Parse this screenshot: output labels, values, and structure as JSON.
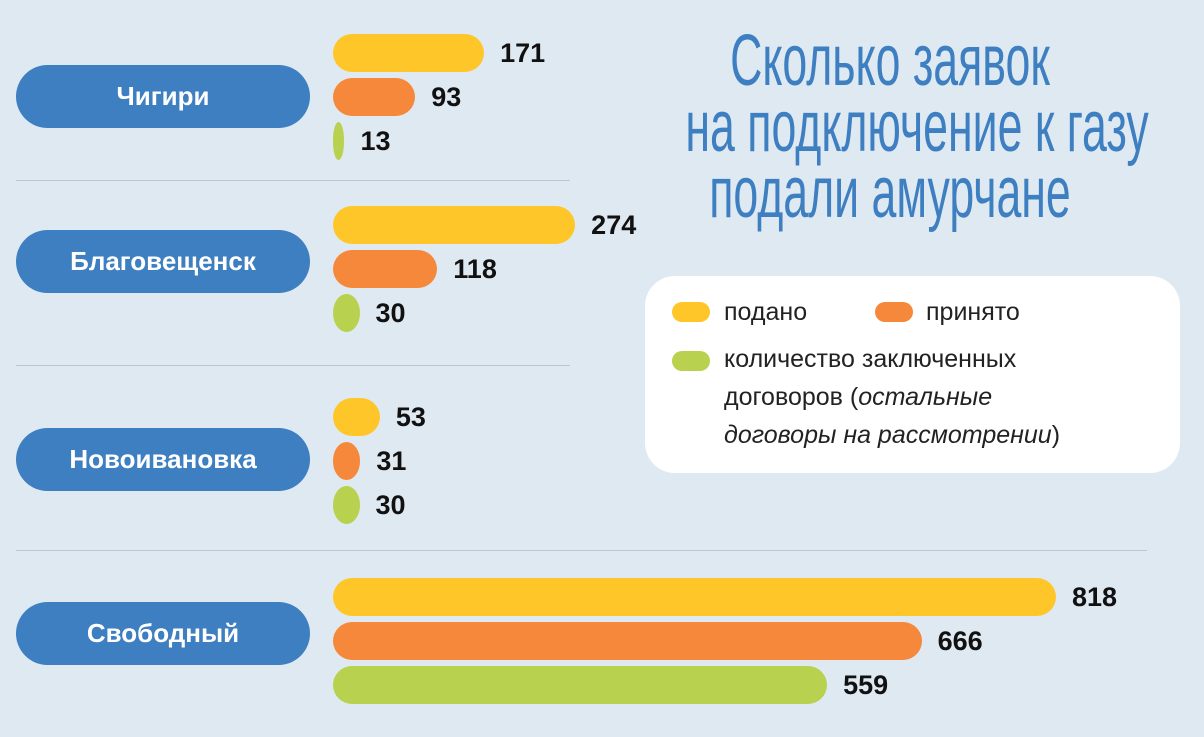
{
  "title": [
    "Сколько заявок",
    "на подключение к газу",
    "подали амурчане"
  ],
  "legend": {
    "submitted": "подано",
    "accepted": "принято",
    "contracts_line1": "количество заключенных",
    "contracts_line2": "договоров (",
    "contracts_line2_italic": "остальные",
    "contracts_line3_italic": "договоры на рассмотрении",
    "contracts_line3_end": ")"
  },
  "colors": {
    "background": "#dfe9f2",
    "category": "#3d7fc1",
    "submitted": "#ffc629",
    "accepted": "#f6883b",
    "contracts": "#b8d14f"
  },
  "chart_data": {
    "type": "bar",
    "orientation": "horizontal",
    "categories": [
      "Чигири",
      "Благовещенск",
      "Новоивановка",
      "Свободный"
    ],
    "series": [
      {
        "name": "подано",
        "values": [
          171,
          274,
          53,
          818
        ]
      },
      {
        "name": "принято",
        "values": [
          93,
          118,
          31,
          666
        ]
      },
      {
        "name": "количество заключенных договоров",
        "values": [
          13,
          30,
          30,
          559
        ]
      }
    ],
    "title": "Сколько заявок на подключение к газу подали амурчане",
    "legend_position": "right"
  }
}
